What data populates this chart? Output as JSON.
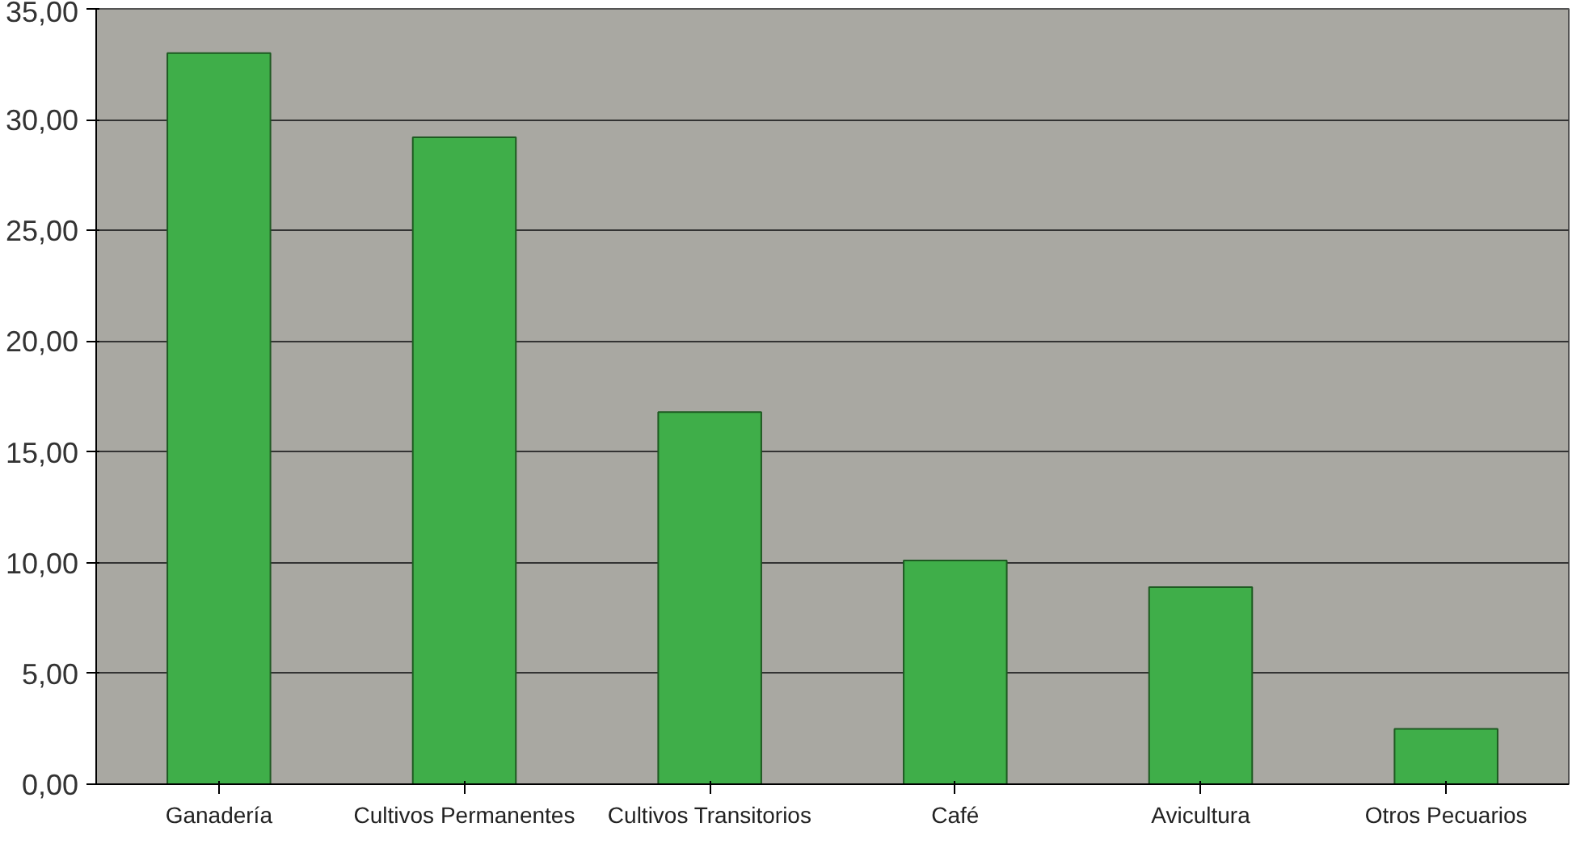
{
  "chart_data": {
    "type": "bar",
    "categories": [
      "Ganadería",
      "Cultivos Permanentes",
      "Cultivos Transitorios",
      "Café",
      "Avicultura",
      "Otros Pecuarios"
    ],
    "values": [
      33.0,
      29.2,
      16.8,
      10.1,
      8.9,
      2.5
    ],
    "color": "#3fae49",
    "ylim": [
      0,
      35
    ],
    "yticks": [
      {
        "value": 0,
        "label": "0,00"
      },
      {
        "value": 5,
        "label": "5,00"
      },
      {
        "value": 10,
        "label": "10,00"
      },
      {
        "value": 15,
        "label": "15,00"
      },
      {
        "value": 20,
        "label": "20,00"
      },
      {
        "value": 25,
        "label": "25,00"
      },
      {
        "value": 30,
        "label": "30,00"
      },
      {
        "value": 35,
        "label": "35,00"
      }
    ],
    "grid": "y"
  }
}
